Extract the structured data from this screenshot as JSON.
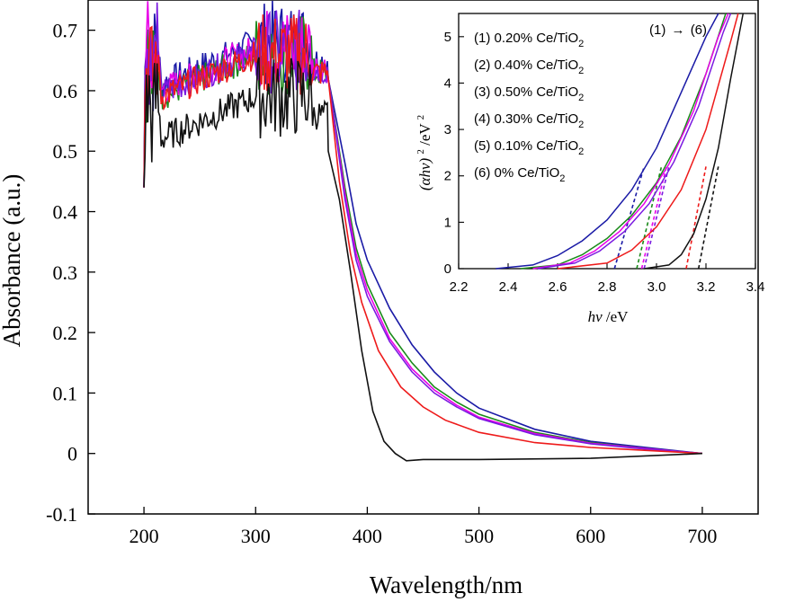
{
  "chart_data": [
    {
      "type": "line",
      "xlabel": "Wavelength/nm",
      "ylabel": "Absorbance (a.u.)",
      "xlim": [
        150,
        750
      ],
      "ylim": [
        -0.1,
        0.75
      ],
      "xticks": [
        200,
        300,
        400,
        500,
        600,
        700
      ],
      "yticks": [
        -0.1,
        0,
        0.1,
        0.2,
        0.3,
        0.4,
        0.5,
        0.6,
        0.7
      ],
      "xtick_labels": [
        "200",
        "300",
        "400",
        "500",
        "600",
        "700"
      ],
      "ytick_labels": [
        "-0.1",
        "0",
        "0.1",
        "0.2",
        "0.3",
        "0.4",
        "0.5",
        "0.6",
        "0.7"
      ],
      "series": [
        {
          "color": "#1a1aa6",
          "x": [
            365,
            380,
            390,
            400,
            420,
            440,
            460,
            480,
            500,
            550,
            600,
            650,
            700
          ],
          "y": [
            0.62,
            0.48,
            0.38,
            0.32,
            0.24,
            0.18,
            0.135,
            0.1,
            0.075,
            0.04,
            0.02,
            0.01,
            0.0
          ]
        },
        {
          "color": "#1a8a1a",
          "x": [
            365,
            380,
            390,
            400,
            420,
            440,
            460,
            480,
            500,
            550,
            600,
            650,
            700
          ],
          "y": [
            0.62,
            0.44,
            0.34,
            0.28,
            0.2,
            0.15,
            0.11,
            0.085,
            0.065,
            0.035,
            0.018,
            0.008,
            0.0
          ]
        },
        {
          "color": "#e800e8",
          "x": [
            365,
            380,
            390,
            400,
            420,
            440,
            460,
            480,
            500,
            550,
            600,
            650,
            700
          ],
          "y": [
            0.62,
            0.43,
            0.33,
            0.27,
            0.19,
            0.14,
            0.105,
            0.08,
            0.06,
            0.033,
            0.017,
            0.008,
            0.0
          ]
        },
        {
          "color": "#7a1ae0",
          "x": [
            365,
            380,
            390,
            400,
            420,
            440,
            460,
            480,
            500,
            550,
            600,
            650,
            700
          ],
          "y": [
            0.62,
            0.42,
            0.32,
            0.26,
            0.185,
            0.135,
            0.1,
            0.077,
            0.058,
            0.031,
            0.016,
            0.007,
            0.0
          ]
        },
        {
          "color": "#ee1a1a",
          "x": [
            365,
            375,
            385,
            395,
            410,
            430,
            450,
            470,
            500,
            550,
            600,
            650,
            700
          ],
          "y": [
            0.62,
            0.45,
            0.33,
            0.25,
            0.17,
            0.11,
            0.077,
            0.055,
            0.035,
            0.018,
            0.01,
            0.005,
            0.0
          ]
        },
        {
          "color": "#111111",
          "x": [
            365,
            375,
            385,
            395,
            405,
            415,
            425,
            435,
            450,
            500,
            600,
            700
          ],
          "y": [
            0.5,
            0.42,
            0.3,
            0.17,
            0.07,
            0.02,
            0.0,
            -0.012,
            -0.01,
            -0.01,
            -0.008,
            0.0
          ]
        }
      ],
      "noisy_region": {
        "x_range": [
          200,
          365
        ]
      }
    },
    {
      "type": "line",
      "xlabel_prefix": "hν",
      "xlabel_suffix": "/eV",
      "ylabel_main": "(αhν)",
      "ylabel_sup": "2",
      "ylabel_unit": "/eV",
      "ylabel_unit_sup": "2",
      "xlim": [
        2.2,
        3.4
      ],
      "ylim": [
        0,
        5.5
      ],
      "xticks": [
        2.2,
        2.4,
        2.6,
        2.8,
        3.0,
        3.2,
        3.4
      ],
      "yticks": [
        0,
        1,
        2,
        3,
        4,
        5
      ],
      "xtick_labels": [
        "2.2",
        "2.4",
        "2.6",
        "2.8",
        "3.0",
        "3.2",
        "3.4"
      ],
      "ytick_labels": [
        "0",
        "1",
        "2",
        "3",
        "4",
        "5"
      ],
      "annotation_left": "(1)",
      "annotation_arrow": "→",
      "annotation_right": "(6)",
      "legend": [
        {
          "num": "(1)",
          "label": "0.20% Ce/TiO",
          "sub": "2"
        },
        {
          "num": "(2)",
          "label": "0.40% Ce/TiO",
          "sub": "2"
        },
        {
          "num": "(3)",
          "label": "0.50% Ce/TiO",
          "sub": "2"
        },
        {
          "num": "(4)",
          "label": "0.30% Ce/TiO",
          "sub": "2"
        },
        {
          "num": "(5)",
          "label": "0.10% Ce/TiO",
          "sub": "2"
        },
        {
          "num": "(6)",
          "label": "0% Ce/TiO",
          "sub": "2"
        }
      ],
      "series": [
        {
          "color": "#1a1aa6",
          "x": [
            2.35,
            2.5,
            2.6,
            2.7,
            2.8,
            2.9,
            3.0,
            3.1,
            3.2,
            3.25
          ],
          "y": [
            0.0,
            0.08,
            0.28,
            0.6,
            1.05,
            1.7,
            2.6,
            3.8,
            5.0,
            5.5
          ],
          "tangent": [
            2.83,
            2.95
          ]
        },
        {
          "color": "#1a8a1a",
          "x": [
            2.45,
            2.6,
            2.7,
            2.8,
            2.9,
            3.0,
            3.1,
            3.2,
            3.28
          ],
          "y": [
            0.0,
            0.08,
            0.3,
            0.65,
            1.15,
            1.85,
            2.85,
            4.2,
            5.5
          ],
          "tangent": [
            2.92,
            3.02
          ]
        },
        {
          "color": "#e800e8",
          "x": [
            2.5,
            2.65,
            2.75,
            2.85,
            2.95,
            3.05,
            3.15,
            3.25,
            3.29
          ],
          "y": [
            0.0,
            0.12,
            0.38,
            0.8,
            1.4,
            2.25,
            3.4,
            5.0,
            5.5
          ],
          "tangent": [
            2.94,
            3.04
          ]
        },
        {
          "color": "#7a1ae0",
          "x": [
            2.52,
            2.67,
            2.77,
            2.87,
            2.97,
            3.07,
            3.17,
            3.27,
            3.3
          ],
          "y": [
            0.0,
            0.12,
            0.38,
            0.8,
            1.4,
            2.3,
            3.5,
            5.1,
            5.5
          ],
          "tangent": [
            2.95,
            3.05
          ]
        },
        {
          "color": "#ee1a1a",
          "x": [
            2.6,
            2.8,
            2.9,
            3.0,
            3.1,
            3.2,
            3.3,
            3.33
          ],
          "y": [
            0.0,
            0.12,
            0.4,
            0.9,
            1.7,
            3.0,
            4.9,
            5.5
          ],
          "tangent": [
            3.12,
            3.2
          ]
        },
        {
          "color": "#111111",
          "x": [
            2.95,
            3.05,
            3.1,
            3.15,
            3.2,
            3.25,
            3.3,
            3.35
          ],
          "y": [
            0.0,
            0.08,
            0.3,
            0.75,
            1.5,
            2.6,
            4.1,
            5.5
          ],
          "tangent": [
            3.17,
            3.25
          ]
        }
      ]
    }
  ]
}
